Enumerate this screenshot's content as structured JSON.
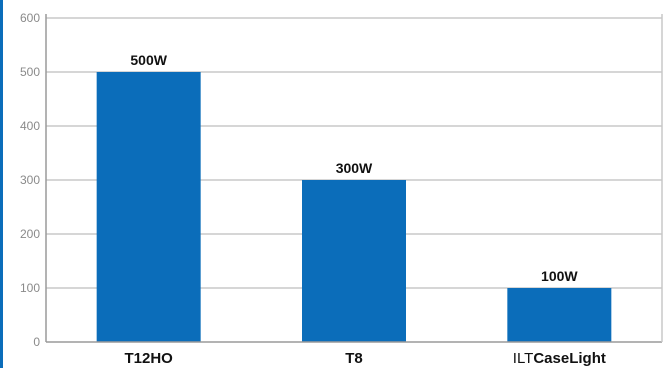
{
  "chart_data": {
    "type": "bar",
    "categories": [
      "T12HO",
      "T8",
      "ILTCaseLight"
    ],
    "category_parts": [
      {
        "prefix": "",
        "main": "T12HO"
      },
      {
        "prefix": "",
        "main": "T8"
      },
      {
        "prefix": "ILT",
        "main": "CaseLight"
      }
    ],
    "values": [
      500,
      300,
      100
    ],
    "data_labels": [
      "500W",
      "300W",
      "100W"
    ],
    "yticks": [
      0,
      100,
      200,
      300,
      400,
      500,
      600
    ],
    "ylim": [
      0,
      600
    ],
    "title": "",
    "xlabel": "",
    "ylabel": "",
    "grid": true,
    "legend": "none",
    "colors": {
      "bar": "#0b6dba",
      "grid": "#c8c8c8",
      "axis": "#9a9a9a",
      "left_border": "#0b6dba"
    }
  }
}
